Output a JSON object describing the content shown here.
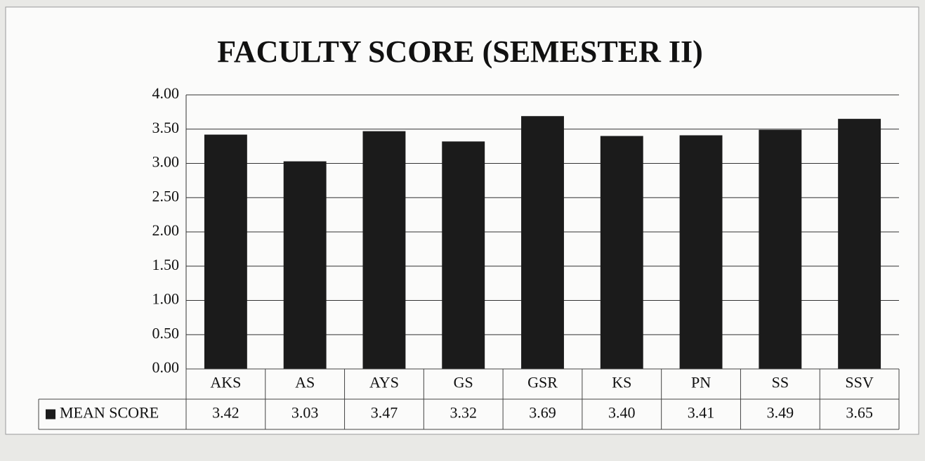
{
  "chart_data": {
    "type": "bar",
    "title": "FACULTY SCORE (SEMESTER II)",
    "categories": [
      "AKS",
      "AS",
      "AYS",
      "GS",
      "GSR",
      "KS",
      "PN",
      "SS",
      "SSV"
    ],
    "series": [
      {
        "name": "MEAN SCORE",
        "color": "#1b1b1b",
        "values": [
          3.42,
          3.03,
          3.47,
          3.32,
          3.69,
          3.4,
          3.41,
          3.49,
          3.65
        ],
        "value_labels": [
          "3.42",
          "3.03",
          "3.47",
          "3.32",
          "3.69",
          "3.40",
          "3.41",
          "3.49",
          "3.65"
        ]
      }
    ],
    "ylim": [
      0,
      4
    ],
    "yticks": [
      {
        "value": 0,
        "label": "0.00"
      },
      {
        "value": 0.5,
        "label": "0.50"
      },
      {
        "value": 1,
        "label": "1.00"
      },
      {
        "value": 1.5,
        "label": "1.50"
      },
      {
        "value": 2,
        "label": "2.00"
      },
      {
        "value": 2.5,
        "label": "2.50"
      },
      {
        "value": 3,
        "label": "3.00"
      },
      {
        "value": 3.5,
        "label": "3.50"
      },
      {
        "value": 4,
        "label": "4.00"
      }
    ],
    "grid": true
  }
}
